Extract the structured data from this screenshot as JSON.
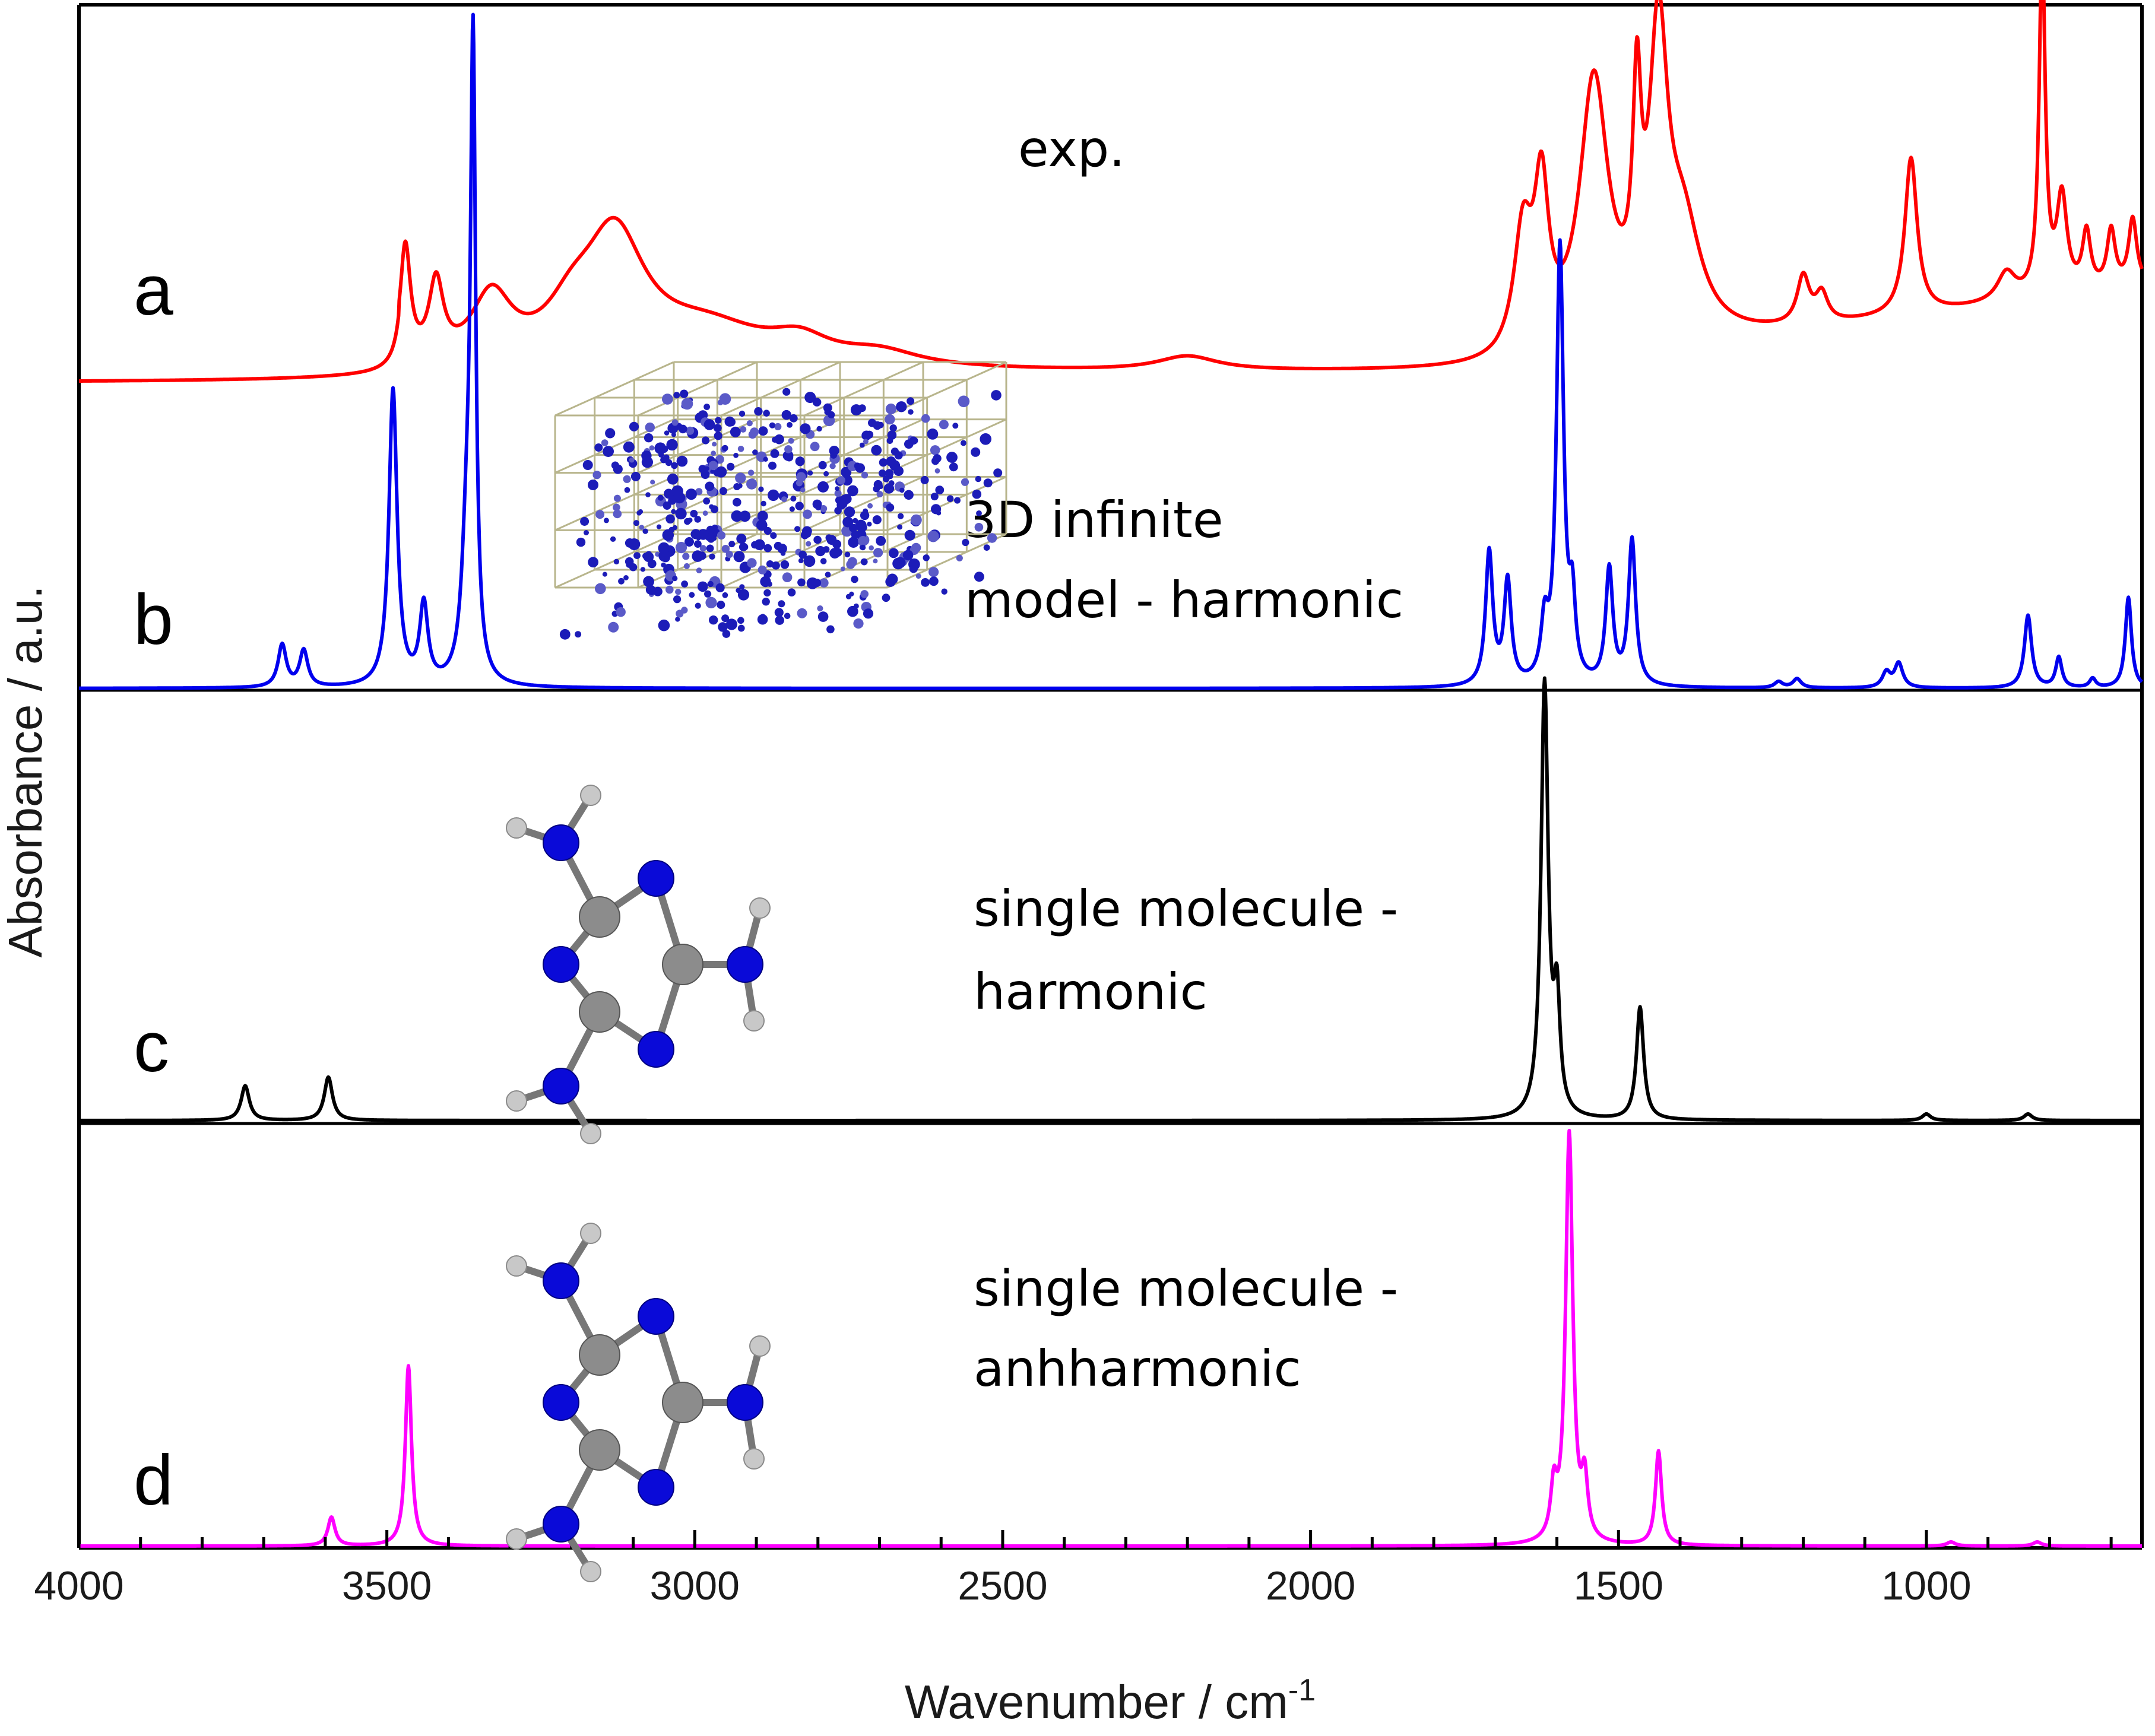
{
  "chart_data": {
    "type": "line",
    "xlabel": "Wavenumber / cm",
    "xlabel_superscript": "-1",
    "ylabel": "Absorbance / a.u.",
    "xlim": [
      4000,
      650
    ],
    "x_ticks": [
      4000,
      3500,
      3000,
      2500,
      2000,
      1500,
      1000
    ],
    "x_minor_step": 100,
    "series": [
      {
        "name": "a",
        "label_lines": [
          "exp."
        ],
        "color": "#ff0000",
        "baseline": 0.0,
        "peaks": [
          {
            "x": 3470,
            "h": 0.24,
            "w": 10
          },
          {
            "x": 3420,
            "h": 0.16,
            "w": 14
          },
          {
            "x": 3330,
            "h": 0.14,
            "w": 40
          },
          {
            "x": 3130,
            "h": 0.26,
            "w": 60
          },
          {
            "x": 3200,
            "h": 0.08,
            "w": 50
          },
          {
            "x": 2980,
            "h": 0.08,
            "w": 120
          },
          {
            "x": 2830,
            "h": 0.045,
            "w": 60
          },
          {
            "x": 2700,
            "h": 0.03,
            "w": 80
          },
          {
            "x": 2200,
            "h": 0.03,
            "w": 60
          },
          {
            "x": 1655,
            "h": 0.25,
            "w": 18
          },
          {
            "x": 1625,
            "h": 0.32,
            "w": 14
          },
          {
            "x": 1540,
            "h": 0.56,
            "w": 28
          },
          {
            "x": 1470,
            "h": 0.42,
            "w": 8
          },
          {
            "x": 1435,
            "h": 0.6,
            "w": 18
          },
          {
            "x": 1395,
            "h": 0.22,
            "w": 35
          },
          {
            "x": 1200,
            "h": 0.1,
            "w": 12
          },
          {
            "x": 1170,
            "h": 0.06,
            "w": 12
          },
          {
            "x": 1025,
            "h": 0.33,
            "w": 12
          },
          {
            "x": 870,
            "h": 0.06,
            "w": 18
          },
          {
            "x": 812,
            "h": 0.72,
            "w": 6
          },
          {
            "x": 780,
            "h": 0.2,
            "w": 10
          },
          {
            "x": 740,
            "h": 0.12,
            "w": 8
          },
          {
            "x": 700,
            "h": 0.12,
            "w": 8
          },
          {
            "x": 665,
            "h": 0.14,
            "w": 8
          }
        ]
      },
      {
        "name": "b",
        "label_lines": [
          "3D infinite",
          "model - harmonic"
        ],
        "color": "#0000ee",
        "baseline": 0.0,
        "peaks": [
          {
            "x": 3670,
            "h": 0.07,
            "w": 8
          },
          {
            "x": 3635,
            "h": 0.06,
            "w": 8
          },
          {
            "x": 3490,
            "h": 0.49,
            "w": 8
          },
          {
            "x": 3440,
            "h": 0.13,
            "w": 8
          },
          {
            "x": 3370,
            "h": 0.22,
            "w": 10
          },
          {
            "x": 3360,
            "h": 1.0,
            "w": 5
          },
          {
            "x": 1710,
            "h": 0.22,
            "w": 7
          },
          {
            "x": 1680,
            "h": 0.17,
            "w": 7
          },
          {
            "x": 1620,
            "h": 0.09,
            "w": 7
          },
          {
            "x": 1595,
            "h": 0.72,
            "w": 7
          },
          {
            "x": 1575,
            "h": 0.12,
            "w": 6
          },
          {
            "x": 1515,
            "h": 0.19,
            "w": 7
          },
          {
            "x": 1478,
            "h": 0.24,
            "w": 7
          },
          {
            "x": 1240,
            "h": 0.01,
            "w": 8
          },
          {
            "x": 1210,
            "h": 0.015,
            "w": 8
          },
          {
            "x": 1065,
            "h": 0.025,
            "w": 8
          },
          {
            "x": 1045,
            "h": 0.04,
            "w": 8
          },
          {
            "x": 835,
            "h": 0.12,
            "w": 7
          },
          {
            "x": 785,
            "h": 0.05,
            "w": 6
          },
          {
            "x": 730,
            "h": 0.015,
            "w": 6
          },
          {
            "x": 672,
            "h": 0.15,
            "w": 6
          }
        ]
      },
      {
        "name": "c",
        "label_lines": [
          "single molecule -",
          "harmonic"
        ],
        "color": "#000000",
        "baseline": 0.0,
        "peaks": [
          {
            "x": 3730,
            "h": 0.08,
            "w": 8
          },
          {
            "x": 3595,
            "h": 0.1,
            "w": 8
          },
          {
            "x": 1620,
            "h": 1.0,
            "w": 7
          },
          {
            "x": 1600,
            "h": 0.25,
            "w": 6
          },
          {
            "x": 1465,
            "h": 0.26,
            "w": 7
          },
          {
            "x": 1000,
            "h": 0.015,
            "w": 8
          },
          {
            "x": 835,
            "h": 0.015,
            "w": 8
          }
        ]
      },
      {
        "name": "d",
        "label_lines": [
          "single molecule -",
          "anhharmonic"
        ],
        "color": "#ff00ff",
        "baseline": 0.0,
        "peaks": [
          {
            "x": 3590,
            "h": 0.07,
            "w": 7
          },
          {
            "x": 3465,
            "h": 0.44,
            "w": 6
          },
          {
            "x": 1605,
            "h": 0.12,
            "w": 6
          },
          {
            "x": 1580,
            "h": 1.0,
            "w": 7
          },
          {
            "x": 1555,
            "h": 0.14,
            "w": 6
          },
          {
            "x": 1435,
            "h": 0.23,
            "w": 6
          },
          {
            "x": 960,
            "h": 0.01,
            "w": 8
          },
          {
            "x": 820,
            "h": 0.01,
            "w": 8
          }
        ]
      }
    ]
  }
}
